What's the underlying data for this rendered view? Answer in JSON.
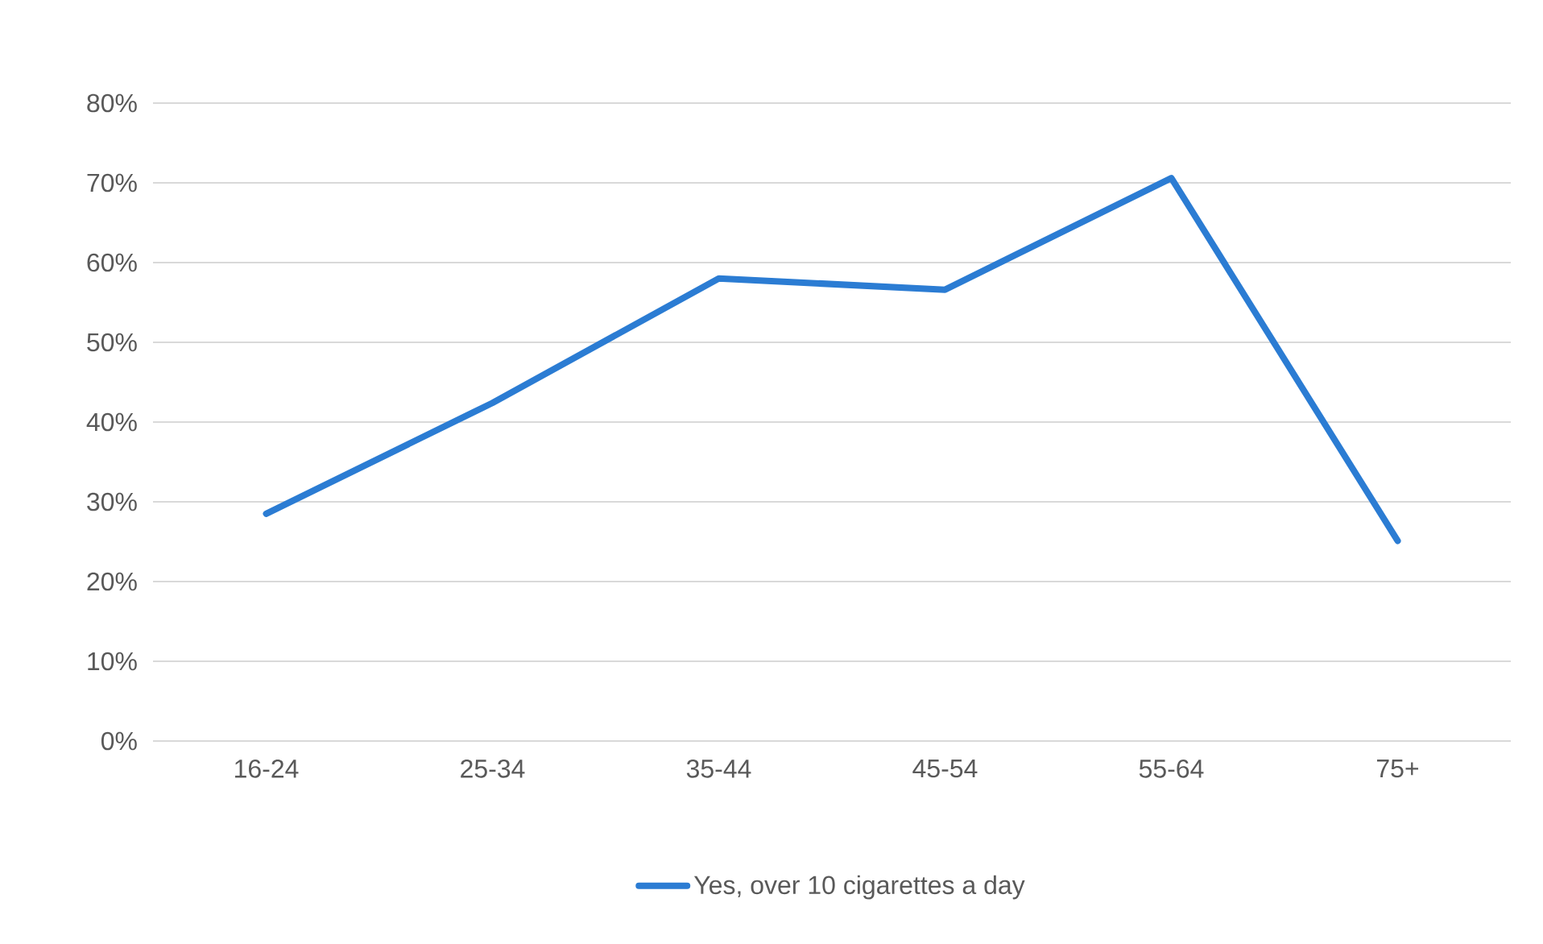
{
  "chart_data": {
    "type": "line",
    "categories": [
      "16-24",
      "25-34",
      "35-44",
      "45-54",
      "55-64",
      "75+"
    ],
    "series": [
      {
        "name": "Yes, over 10 cigarettes a day",
        "color": "#2b7cd3",
        "values": [
          28.5,
          42.4,
          58.0,
          56.6,
          70.6,
          25.1
        ]
      }
    ],
    "ylim": [
      0,
      80
    ],
    "yticks": [
      {
        "value": 0,
        "label": "0%"
      },
      {
        "value": 10,
        "label": "10%"
      },
      {
        "value": 20,
        "label": "20%"
      },
      {
        "value": 30,
        "label": "30%"
      },
      {
        "value": 40,
        "label": "40%"
      },
      {
        "value": 50,
        "label": "50%"
      },
      {
        "value": 60,
        "label": "60%"
      },
      {
        "value": 70,
        "label": "70%"
      },
      {
        "value": 80,
        "label": "80%"
      }
    ],
    "grid": "y",
    "legend": "bottom"
  }
}
